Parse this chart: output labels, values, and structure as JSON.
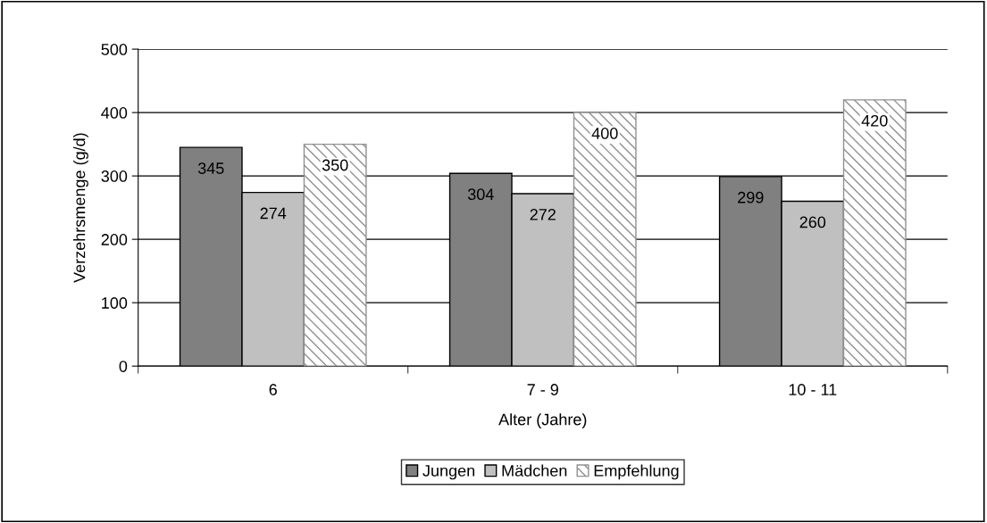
{
  "chart_data": {
    "type": "bar",
    "xlabel": "Alter (Jahre)",
    "ylabel": "Verzehrsmenge (g/d)",
    "categories": [
      "6",
      "7 - 9",
      "10 - 11"
    ],
    "series": [
      {
        "name": "Jungen",
        "color": "#808080",
        "values": [
          345,
          304,
          299
        ]
      },
      {
        "name": "Mädchen",
        "color": "#c0c0c0",
        "values": [
          274,
          272,
          260
        ]
      },
      {
        "name": "Empfehlung",
        "color": "#909090",
        "values": [
          350,
          400,
          420
        ]
      }
    ],
    "ylim": [
      0,
      500
    ],
    "yticks": [
      0,
      100,
      200,
      300,
      400,
      500
    ],
    "grid": "y",
    "legend": "bottom",
    "data_labels": true
  }
}
